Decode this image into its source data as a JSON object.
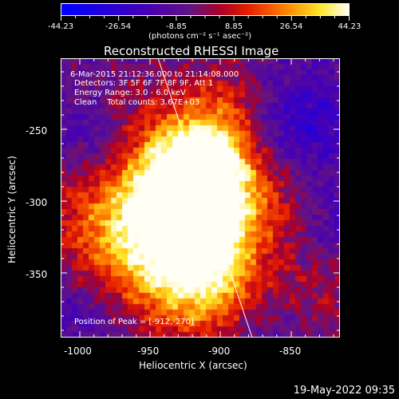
{
  "colorbar": {
    "labels": [
      "-44.23",
      "-26.54",
      "-8.85",
      "8.85",
      "26.54",
      "44.23"
    ],
    "units": "(photons cm⁻² s⁻¹ asec⁻²)"
  },
  "title": "Reconstructed RHESSI Image",
  "annotations": {
    "time": "6-Mar-2015 21:12:36.000 to 21:14:08.000",
    "detectors": "Detectors: 3F 5F 6F 7F 8F 9F, Att 1",
    "energy": "Energy Range: 3.0 - 6.0 keV",
    "clean": "Clean    Total counts: 3.67E+03"
  },
  "peak": "Position of Peak = [-912,-270]",
  "axes": {
    "ylabel": "Heliocentric Y (arcsec)",
    "xlabel": "Heliocentric X (arcsec)",
    "yticks": [
      "-250",
      "-300",
      "-350"
    ],
    "xticks": [
      "-1000",
      "-950",
      "-900",
      "-850"
    ]
  },
  "timestamp": "19-May-2022 09:35"
}
